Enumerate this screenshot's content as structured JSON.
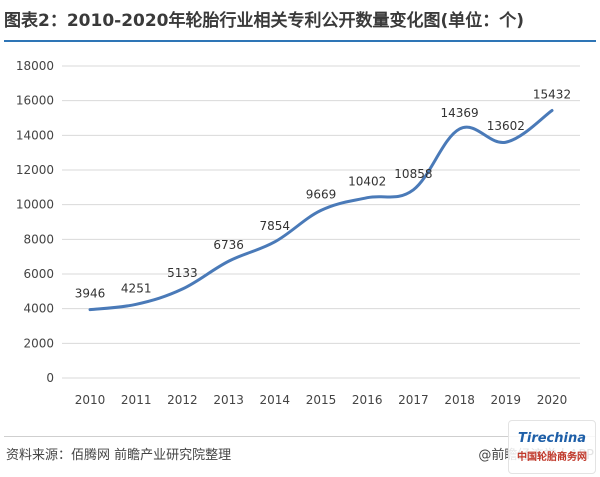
{
  "title": "图表2：2010-2020年轮胎行业相关专利公开数量变化图(单位：个)",
  "source": "资料来源：佰腾网 前瞻产业研究院整理",
  "credit": "@前瞻经济学人APP",
  "badge": {
    "brand": "Tirechina",
    "text": "中国轮胎商务网"
  },
  "colors": {
    "line": "#4a7ab8",
    "rule": "#2e75b6",
    "grid": "#d9d9d9"
  },
  "chart_data": {
    "type": "line",
    "title": "图表2：2010-2020年轮胎行业相关专利公开数量变化图(单位：个)",
    "xlabel": "",
    "ylabel": "",
    "categories": [
      "2010",
      "2011",
      "2012",
      "2013",
      "2014",
      "2015",
      "2016",
      "2017",
      "2018",
      "2019",
      "2020"
    ],
    "series": [
      {
        "values": [
          3946,
          4251,
          5133,
          6736,
          7854,
          9669,
          10402,
          10858,
          14369,
          13602,
          15432
        ]
      }
    ],
    "ylim": [
      0,
      18000
    ],
    "yticks": [
      0,
      2000,
      4000,
      6000,
      8000,
      10000,
      12000,
      14000,
      16000,
      18000
    ],
    "grid": true,
    "smooth": true,
    "legend": "none"
  }
}
